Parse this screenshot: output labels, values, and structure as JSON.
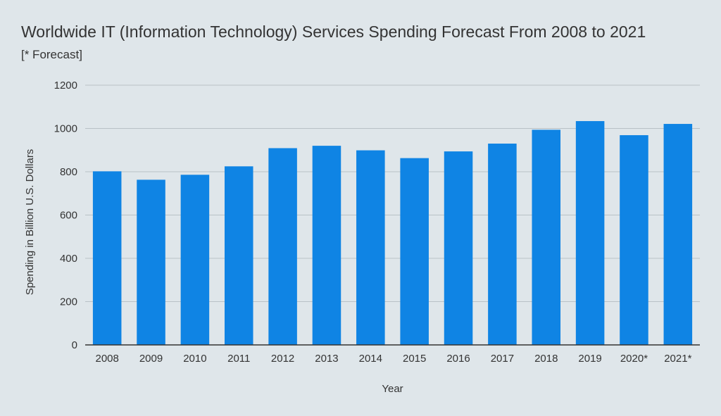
{
  "chart_data": {
    "type": "bar",
    "title": "Worldwide IT (Information Technology) Services Spending Forecast From 2008 to 2021",
    "subtitle": "[* Forecast]",
    "xlabel": "Year",
    "ylabel": "Spending in Billion U.S. Dollars",
    "categories": [
      "2008",
      "2009",
      "2010",
      "2011",
      "2012",
      "2013",
      "2014",
      "2015",
      "2016",
      "2017",
      "2018",
      "2019",
      "2020*",
      "2021*"
    ],
    "values": [
      802,
      763,
      786,
      825,
      909,
      920,
      899,
      863,
      894,
      930,
      994,
      1034,
      969,
      1021
    ],
    "ylim": [
      0,
      1200
    ],
    "yticks": [
      0,
      200,
      400,
      600,
      800,
      1000,
      1200
    ],
    "grid": true,
    "bar_color": "#0f84e4",
    "grid_color": "#b9c1c6"
  }
}
